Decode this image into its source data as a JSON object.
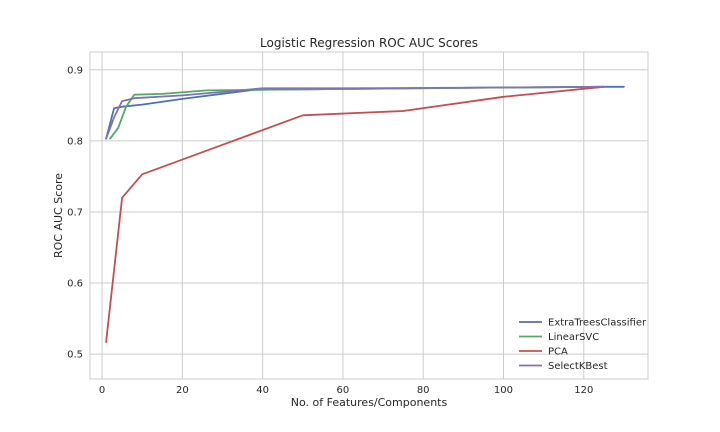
{
  "chart_data": {
    "type": "line",
    "title": "Logistic Regression ROC AUC Scores",
    "xlabel": "No. of Features/Components",
    "ylabel": "ROC AUC Score",
    "xlim": [
      -3,
      136
    ],
    "ylim": [
      0.465,
      0.925
    ],
    "xticks": [
      0,
      20,
      40,
      60,
      80,
      100,
      120
    ],
    "yticks": [
      0.5,
      0.6,
      0.7,
      0.8,
      0.9
    ],
    "grid": true,
    "legend_position": "bottom-right",
    "series": [
      {
        "name": "ExtraTreesClassifier",
        "color": "#4c72b0",
        "x": [
          1,
          3,
          5,
          10,
          20,
          38,
          60,
          100,
          125,
          130
        ],
        "y": [
          0.803,
          0.846,
          0.848,
          0.851,
          0.859,
          0.872,
          0.873,
          0.875,
          0.876,
          0.876
        ]
      },
      {
        "name": "LinearSVC",
        "color": "#55a868",
        "x": [
          2,
          4,
          6,
          8,
          15,
          26,
          60,
          100,
          125
        ],
        "y": [
          0.803,
          0.818,
          0.848,
          0.865,
          0.866,
          0.871,
          0.873,
          0.875,
          0.876
        ]
      },
      {
        "name": "PCA",
        "color": "#c44e52",
        "x": [
          1,
          5,
          10,
          25,
          50,
          75,
          100,
          125
        ],
        "y": [
          0.517,
          0.72,
          0.753,
          0.784,
          0.836,
          0.842,
          0.862,
          0.876
        ]
      },
      {
        "name": "SelectKBest",
        "color": "#8172b2",
        "x": [
          1,
          3,
          5,
          8,
          20,
          40,
          60,
          100,
          125
        ],
        "y": [
          0.803,
          0.833,
          0.856,
          0.86,
          0.864,
          0.874,
          0.874,
          0.875,
          0.876
        ]
      }
    ]
  }
}
